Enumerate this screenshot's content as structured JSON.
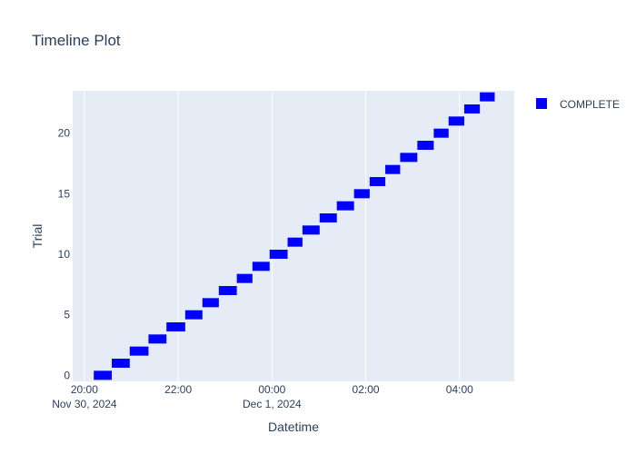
{
  "chart_data": {
    "type": "bar",
    "orientation": "horizontal",
    "title": "Timeline Plot",
    "xlabel": "Datetime",
    "ylabel": "Trial",
    "grid": true,
    "legend_position": "top-right",
    "x_ticks": [
      {
        "time": "2024-11-30 20:00",
        "label": "20:00",
        "sublabel": "Nov 30, 2024"
      },
      {
        "time": "2024-11-30 22:00",
        "label": "22:00",
        "sublabel": ""
      },
      {
        "time": "2024-12-01 00:00",
        "label": "00:00",
        "sublabel": "Dec 1, 2024"
      },
      {
        "time": "2024-12-01 02:00",
        "label": "02:00",
        "sublabel": ""
      },
      {
        "time": "2024-12-01 04:00",
        "label": "04:00",
        "sublabel": ""
      }
    ],
    "y_ticks": [
      0,
      5,
      10,
      15,
      20
    ],
    "xlim": [
      "2024-11-30 19:45",
      "2024-12-01 05:10"
    ],
    "ylim": [
      -0.5,
      23.5
    ],
    "series": [
      {
        "name": "COMPLETE",
        "color": "#0000ff",
        "points": [
          {
            "trial": 0,
            "start": "2024-11-30 20:12",
            "end": "2024-11-30 20:35"
          },
          {
            "trial": 1,
            "start": "2024-11-30 20:35",
            "end": "2024-11-30 20:58"
          },
          {
            "trial": 2,
            "start": "2024-11-30 20:58",
            "end": "2024-11-30 21:22"
          },
          {
            "trial": 3,
            "start": "2024-11-30 21:22",
            "end": "2024-11-30 21:45"
          },
          {
            "trial": 4,
            "start": "2024-11-30 21:45",
            "end": "2024-11-30 22:09"
          },
          {
            "trial": 5,
            "start": "2024-11-30 22:09",
            "end": "2024-11-30 22:31"
          },
          {
            "trial": 6,
            "start": "2024-11-30 22:31",
            "end": "2024-11-30 22:52"
          },
          {
            "trial": 7,
            "start": "2024-11-30 22:52",
            "end": "2024-11-30 23:15"
          },
          {
            "trial": 8,
            "start": "2024-11-30 23:15",
            "end": "2024-11-30 23:35"
          },
          {
            "trial": 9,
            "start": "2024-11-30 23:35",
            "end": "2024-11-30 23:57"
          },
          {
            "trial": 10,
            "start": "2024-11-30 23:57",
            "end": "2024-12-01 00:20"
          },
          {
            "trial": 11,
            "start": "2024-12-01 00:20",
            "end": "2024-12-01 00:39"
          },
          {
            "trial": 12,
            "start": "2024-12-01 00:39",
            "end": "2024-12-01 01:01"
          },
          {
            "trial": 13,
            "start": "2024-12-01 01:01",
            "end": "2024-12-01 01:23"
          },
          {
            "trial": 14,
            "start": "2024-12-01 01:23",
            "end": "2024-12-01 01:45"
          },
          {
            "trial": 15,
            "start": "2024-12-01 01:45",
            "end": "2024-12-01 02:05"
          },
          {
            "trial": 16,
            "start": "2024-12-01 02:05",
            "end": "2024-12-01 02:25"
          },
          {
            "trial": 17,
            "start": "2024-12-01 02:25",
            "end": "2024-12-01 02:44"
          },
          {
            "trial": 18,
            "start": "2024-12-01 02:44",
            "end": "2024-12-01 03:06"
          },
          {
            "trial": 19,
            "start": "2024-12-01 03:06",
            "end": "2024-12-01 03:27"
          },
          {
            "trial": 20,
            "start": "2024-12-01 03:27",
            "end": "2024-12-01 03:46"
          },
          {
            "trial": 21,
            "start": "2024-12-01 03:46",
            "end": "2024-12-01 04:06"
          },
          {
            "trial": 22,
            "start": "2024-12-01 04:06",
            "end": "2024-12-01 04:26"
          },
          {
            "trial": 23,
            "start": "2024-12-01 04:26",
            "end": "2024-12-01 04:45"
          }
        ]
      }
    ]
  },
  "colors": {
    "plot_background": "#e5ecf6",
    "gridline": "#ffffff",
    "text": "#2a3f5f"
  }
}
